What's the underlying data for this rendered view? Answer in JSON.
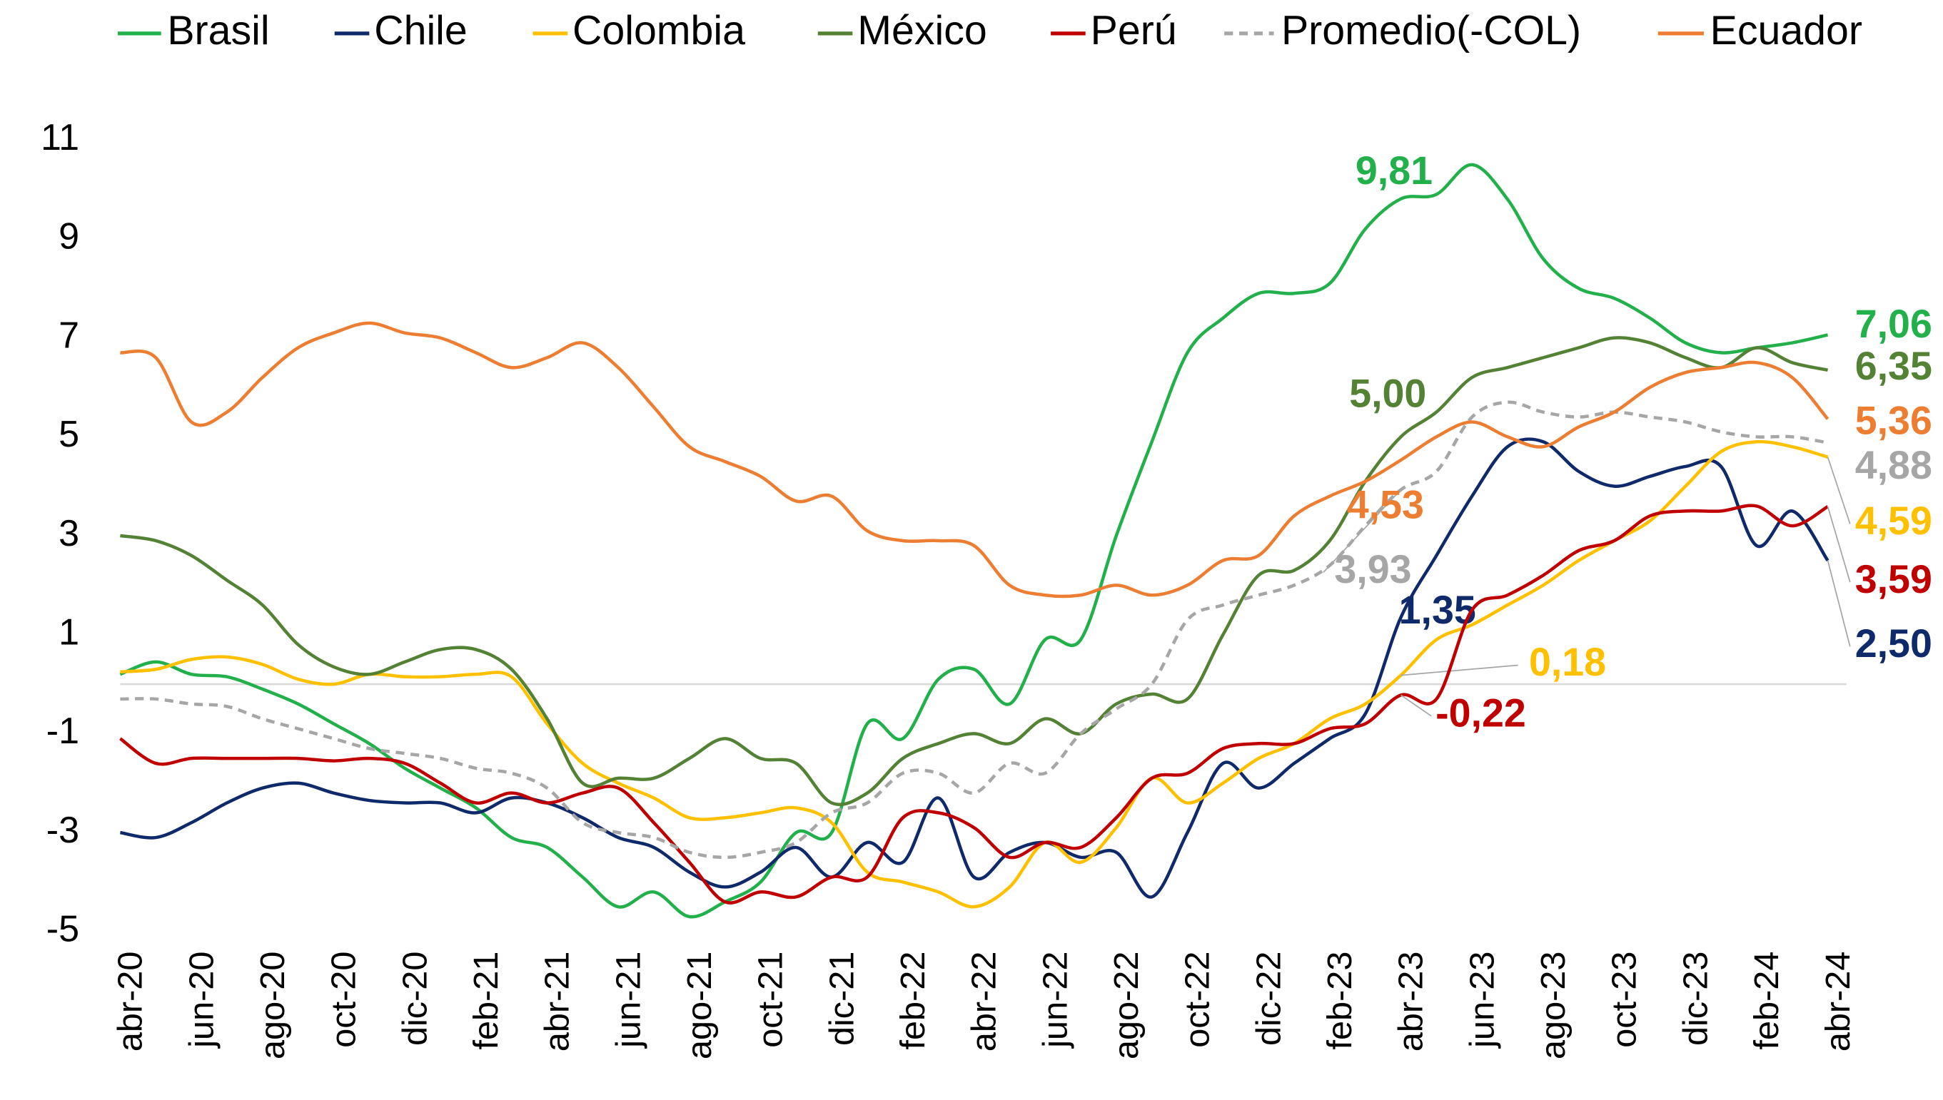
{
  "chart_data": {
    "type": "line",
    "categories": [
      "abr-20",
      null,
      "jun-20",
      null,
      "ago-20",
      null,
      "oct-20",
      null,
      "dic-20",
      null,
      "feb-21",
      null,
      "abr-21",
      null,
      "jun-21",
      null,
      "ago-21",
      null,
      "oct-21",
      null,
      "dic-21",
      null,
      "feb-22",
      null,
      "abr-22",
      null,
      "jun-22",
      null,
      "ago-22",
      null,
      "oct-22",
      null,
      "dic-22",
      null,
      "feb-23",
      null,
      "abr-23",
      null,
      "jun-23",
      null,
      "ago-23",
      null,
      "oct-23",
      null,
      "dic-23",
      null,
      "feb-24",
      null,
      "abr-24"
    ],
    "ylim": [
      -5,
      11
    ],
    "yticks": [
      -5,
      -3,
      -1,
      1,
      3,
      5,
      7,
      9,
      11
    ],
    "series": [
      {
        "name": "Brasil",
        "color": "#22b04b",
        "dashed": false,
        "values": [
          0.2,
          0.45,
          0.2,
          0.15,
          -0.1,
          -0.4,
          -0.8,
          -1.2,
          -1.7,
          -2.1,
          -2.5,
          -3.1,
          -3.3,
          -3.9,
          -4.5,
          -4.2,
          -4.7,
          -4.4,
          -4.0,
          -3.0,
          -3.0,
          -0.8,
          -1.1,
          0.1,
          0.3,
          -0.4,
          0.9,
          0.9,
          3.0,
          4.9,
          6.7,
          7.4,
          7.9,
          7.9,
          8.1,
          9.2,
          9.81,
          9.9,
          10.5,
          9.8,
          8.6,
          8.0,
          7.8,
          7.4,
          6.9,
          6.7,
          6.8,
          6.9,
          7.06
        ],
        "value_labels": [
          null,
          null,
          null,
          null,
          null,
          null,
          null,
          null,
          null,
          null,
          null,
          null,
          null,
          null,
          null,
          null,
          null,
          null,
          null,
          null,
          null,
          null,
          null,
          null,
          null,
          null,
          null,
          null,
          null,
          null,
          null,
          null,
          null,
          null,
          null,
          null,
          "9,81",
          null,
          null,
          null,
          null,
          null,
          null,
          null,
          null,
          null,
          null,
          null,
          "7,06"
        ]
      },
      {
        "name": "Chile",
        "color": "#0f2a6b",
        "dashed": false,
        "values": [
          -3.0,
          -3.1,
          -2.8,
          -2.4,
          -2.1,
          -2.0,
          -2.2,
          -2.35,
          -2.4,
          -2.4,
          -2.6,
          -2.3,
          -2.4,
          -2.7,
          -3.1,
          -3.3,
          -3.8,
          -4.1,
          -3.8,
          -3.3,
          -3.9,
          -3.2,
          -3.6,
          -2.3,
          -3.9,
          -3.4,
          -3.2,
          -3.5,
          -3.4,
          -4.3,
          -3.0,
          -1.6,
          -2.1,
          -1.6,
          -1.1,
          -0.6,
          1.35,
          2.6,
          3.8,
          4.8,
          4.9,
          4.3,
          4.0,
          4.2,
          4.4,
          4.4,
          2.8,
          3.5,
          2.5
        ],
        "value_labels": [
          null,
          null,
          null,
          null,
          null,
          null,
          null,
          null,
          null,
          null,
          null,
          null,
          null,
          null,
          null,
          null,
          null,
          null,
          null,
          null,
          null,
          null,
          null,
          null,
          null,
          null,
          null,
          null,
          null,
          null,
          null,
          null,
          null,
          null,
          null,
          null,
          "1,35",
          null,
          null,
          null,
          null,
          null,
          null,
          null,
          null,
          null,
          null,
          null,
          "2,50"
        ]
      },
      {
        "name": "Colombia",
        "color": "#ffc000",
        "dashed": false,
        "values": [
          0.25,
          0.3,
          0.5,
          0.55,
          0.4,
          0.1,
          0.0,
          0.2,
          0.15,
          0.15,
          0.2,
          0.15,
          -0.8,
          -1.6,
          -2.0,
          -2.3,
          -2.7,
          -2.7,
          -2.6,
          -2.5,
          -2.8,
          -3.8,
          -4.0,
          -4.2,
          -4.5,
          -4.1,
          -3.2,
          -3.6,
          -2.9,
          -1.9,
          -2.4,
          -2.0,
          -1.5,
          -1.2,
          -0.7,
          -0.4,
          0.18,
          0.9,
          1.2,
          1.6,
          2.0,
          2.5,
          2.9,
          3.3,
          4.0,
          4.7,
          4.9,
          4.8,
          4.59
        ],
        "value_labels": [
          null,
          null,
          null,
          null,
          null,
          null,
          null,
          null,
          null,
          null,
          null,
          null,
          null,
          null,
          null,
          null,
          null,
          null,
          null,
          null,
          null,
          null,
          null,
          null,
          null,
          null,
          null,
          null,
          null,
          null,
          null,
          null,
          null,
          null,
          null,
          null,
          "0,18",
          null,
          null,
          null,
          null,
          null,
          null,
          null,
          null,
          null,
          null,
          null,
          "4,59"
        ]
      },
      {
        "name": "México",
        "color": "#548235",
        "dashed": false,
        "values": [
          3.0,
          2.9,
          2.6,
          2.1,
          1.6,
          0.8,
          0.35,
          0.2,
          0.45,
          0.7,
          0.7,
          0.3,
          -0.7,
          -2.0,
          -1.9,
          -1.9,
          -1.5,
          -1.1,
          -1.5,
          -1.6,
          -2.4,
          -2.2,
          -1.5,
          -1.2,
          -1.0,
          -1.2,
          -0.7,
          -1.0,
          -0.4,
          -0.2,
          -0.3,
          1.0,
          2.2,
          2.3,
          2.9,
          4.1,
          5.0,
          5.5,
          6.2,
          6.4,
          6.6,
          6.8,
          7.0,
          6.9,
          6.6,
          6.4,
          6.8,
          6.5,
          6.35
        ],
        "value_labels": [
          null,
          null,
          null,
          null,
          null,
          null,
          null,
          null,
          null,
          null,
          null,
          null,
          null,
          null,
          null,
          null,
          null,
          null,
          null,
          null,
          null,
          null,
          null,
          null,
          null,
          null,
          null,
          null,
          null,
          null,
          null,
          null,
          null,
          null,
          null,
          null,
          "5,00",
          null,
          null,
          null,
          null,
          null,
          null,
          null,
          null,
          null,
          null,
          null,
          "6,35"
        ]
      },
      {
        "name": "Perú",
        "color": "#c00000",
        "dashed": false,
        "values": [
          -1.1,
          -1.6,
          -1.5,
          -1.5,
          -1.5,
          -1.5,
          -1.55,
          -1.5,
          -1.6,
          -2.0,
          -2.4,
          -2.2,
          -2.4,
          -2.2,
          -2.1,
          -2.8,
          -3.6,
          -4.4,
          -4.2,
          -4.3,
          -3.9,
          -3.9,
          -2.7,
          -2.6,
          -2.9,
          -3.5,
          -3.2,
          -3.3,
          -2.7,
          -1.9,
          -1.8,
          -1.3,
          -1.2,
          -1.2,
          -0.9,
          -0.8,
          -0.22,
          -0.3,
          1.5,
          1.8,
          2.2,
          2.7,
          2.9,
          3.4,
          3.5,
          3.5,
          3.6,
          3.2,
          3.59
        ],
        "value_labels": [
          null,
          null,
          null,
          null,
          null,
          null,
          null,
          null,
          null,
          null,
          null,
          null,
          null,
          null,
          null,
          null,
          null,
          null,
          null,
          null,
          null,
          null,
          null,
          null,
          null,
          null,
          null,
          null,
          null,
          null,
          null,
          null,
          null,
          null,
          null,
          null,
          "-0,22",
          null,
          null,
          null,
          null,
          null,
          null,
          null,
          null,
          null,
          null,
          null,
          "3,59"
        ]
      },
      {
        "name": "Promedio(-COL)",
        "color": "#a6a6a6",
        "dashed": true,
        "values": [
          -0.3,
          -0.3,
          -0.4,
          -0.45,
          -0.7,
          -0.9,
          -1.1,
          -1.3,
          -1.4,
          -1.5,
          -1.7,
          -1.8,
          -2.1,
          -2.8,
          -3.0,
          -3.1,
          -3.4,
          -3.5,
          -3.4,
          -3.2,
          -2.6,
          -2.4,
          -1.8,
          -1.8,
          -2.2,
          -1.6,
          -1.8,
          -1.0,
          -0.5,
          0.0,
          1.3,
          1.6,
          1.8,
          2.0,
          2.4,
          3.2,
          3.93,
          4.3,
          5.4,
          5.7,
          5.5,
          5.4,
          5.5,
          5.4,
          5.3,
          5.1,
          5.0,
          5.0,
          4.88
        ],
        "value_labels": [
          null,
          null,
          null,
          null,
          null,
          null,
          null,
          null,
          null,
          null,
          null,
          null,
          null,
          null,
          null,
          null,
          null,
          null,
          null,
          null,
          null,
          null,
          null,
          null,
          null,
          null,
          null,
          null,
          null,
          null,
          null,
          null,
          null,
          null,
          null,
          null,
          "3,93",
          null,
          null,
          null,
          null,
          null,
          null,
          null,
          null,
          null,
          null,
          null,
          "4,88"
        ]
      },
      {
        "name": "Ecuador",
        "color": "#ed7d31",
        "dashed": false,
        "values": [
          6.7,
          6.6,
          5.3,
          5.5,
          6.2,
          6.8,
          7.1,
          7.3,
          7.1,
          7.0,
          6.7,
          6.4,
          6.6,
          6.9,
          6.4,
          5.6,
          4.8,
          4.5,
          4.2,
          3.7,
          3.8,
          3.1,
          2.9,
          2.9,
          2.8,
          2.0,
          1.8,
          1.8,
          2.0,
          1.8,
          2.0,
          2.5,
          2.6,
          3.4,
          3.8,
          4.1,
          4.53,
          5.0,
          5.3,
          5.0,
          4.8,
          5.2,
          5.5,
          6.0,
          6.3,
          6.4,
          6.5,
          6.2,
          5.36
        ],
        "value_labels": [
          null,
          null,
          null,
          null,
          null,
          null,
          null,
          null,
          null,
          null,
          null,
          null,
          null,
          null,
          null,
          null,
          null,
          null,
          null,
          null,
          null,
          null,
          null,
          null,
          null,
          null,
          null,
          null,
          null,
          null,
          null,
          null,
          null,
          null,
          null,
          null,
          "4,53",
          null,
          null,
          null,
          null,
          null,
          null,
          null,
          null,
          null,
          null,
          null,
          "5,36"
        ]
      }
    ]
  }
}
